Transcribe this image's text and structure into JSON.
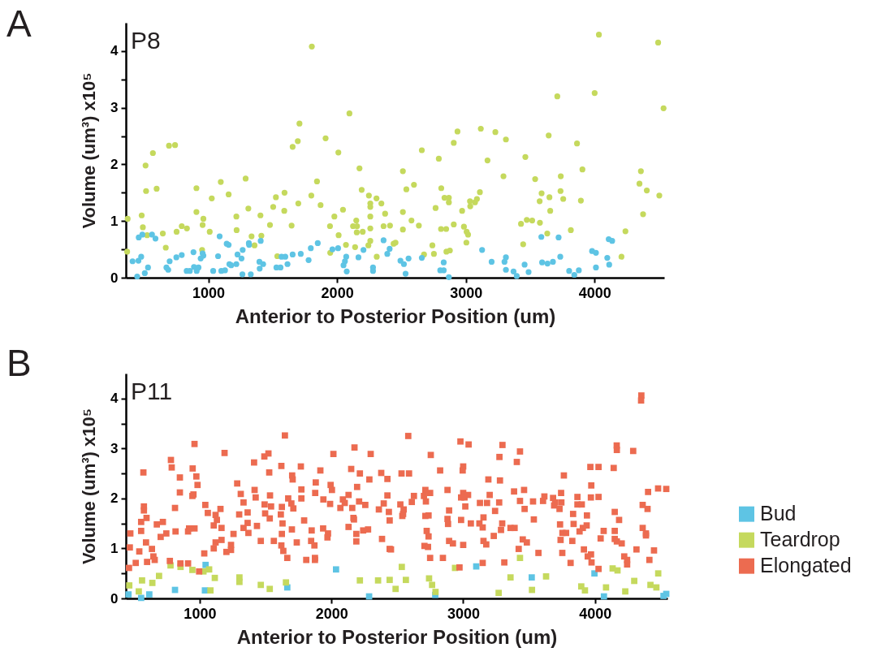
{
  "chart_data": [
    {
      "type": "scatter",
      "title": "P8",
      "xlabel": "Anterior to Posterior Position (um)",
      "ylabel": "Volume (um³) x10⁵",
      "annotations": [
        "A"
      ],
      "marker": "circle",
      "legend": false,
      "xlim": [
        360,
        4540
      ],
      "xticks": [
        1000,
        2000,
        3000,
        4000
      ],
      "ylim": [
        0,
        4.5
      ],
      "yticks": [
        0,
        {
          "value": 0.5,
          "label": null
        },
        1,
        {
          "value": 1.5,
          "label": null
        },
        2,
        {
          "value": 2.5,
          "label": null
        },
        3,
        {
          "value": 3.5,
          "label": null
        },
        4
      ],
      "series": [
        {
          "color": "#c5d95d",
          "x": [
            374,
            370,
            483,
            492,
            513,
            517,
            525,
            570,
            599,
            647,
            670,
            695,
            742,
            754,
            794,
            834,
            908,
            908,
            952,
            956,
            962,
            1011,
            1027,
            1097,
            1158,
            1218,
            1220,
            1290,
            1311,
            1336,
            1359,
            1405,
            1412,
            1479,
            1504,
            1525,
            1536,
            1592,
            1590,
            1647,
            1655,
            1695,
            1708,
            1699,
            1804,
            1800,
            1844,
            1872,
            1911,
            1945,
            1947,
            1979,
            2010,
            2012,
            2046,
            2069,
            2096,
            2124,
            2149,
            2153,
            2155,
            2140,
            2174,
            2191,
            2199,
            2247,
            2258,
            2258,
            2258,
            2258,
            2258,
            2243,
            2306,
            2308,
            2344,
            2373,
            2361,
            2411,
            2439,
            2454,
            2511,
            2511,
            2511,
            2538,
            2578,
            2597,
            2635,
            2658,
            2675,
            2740,
            2752,
            2765,
            2790,
            2809,
            2807,
            2847,
            2834,
            2868,
            2868,
            2849,
            2876,
            2906,
            2935,
            2906,
            2971,
            2985,
            3006,
            3017,
            3004,
            3032,
            3034,
            3071,
            3086,
            3109,
            3116,
            3168,
            3229,
            3292,
            3311,
            3428,
            3445,
            3462,
            3473,
            3515,
            3538,
            3575,
            3573,
            3588,
            3632,
            3643,
            3649,
            3655,
            3710,
            3737,
            3735,
            3756,
            3815,
            3863,
            3893,
            3905,
            4000,
            4033,
            4208,
            4239,
            4348,
            4359,
            4376,
            4405,
            4493,
            4502,
            4535
          ],
          "values": [
            1.04,
            0.46,
            1.1,
            0.89,
            1.98,
            1.53,
            0.75,
            2.2,
            1.57,
            0.78,
            0.53,
            2.33,
            2.34,
            0.81,
            0.91,
            0.87,
            1.58,
            1.16,
            0.49,
            0.93,
            1.04,
            0.81,
            1.4,
            1.69,
            1.47,
            1.08,
            0.84,
            1.75,
            1.22,
            0.73,
            0.57,
            1.1,
            0.74,
            0.93,
            1.25,
            1.42,
            0.38,
            1.5,
            1.18,
            0.92,
            2.31,
            2.41,
            2.72,
            1.31,
            4.08,
            1.45,
            1.7,
            1.28,
            2.46,
            0.91,
            0.44,
            1.08,
            2.21,
            0.75,
            1.2,
            0.58,
            2.9,
            0.91,
            1.01,
            0.8,
            0.91,
            0.54,
            1.93,
            1.55,
            0.81,
            1.45,
            1.31,
            1.25,
            1.08,
            0.87,
            0.65,
            0.57,
            1.4,
            0.37,
            1.31,
            1.13,
            0.91,
            0.92,
            0.6,
            0.62,
            1.88,
            1.16,
            0.85,
            1.56,
            1.01,
            1.64,
            0.92,
            2.25,
            0.41,
            0.57,
            0.42,
            1.23,
            2.1,
            1.58,
            0.86,
            0.86,
            1.41,
            1.41,
            1.33,
            0.46,
            0.48,
            2.38,
            2.58,
            0.94,
            1.18,
            0.9,
            0.81,
            0.76,
            0.62,
            1.35,
            1.26,
            1.33,
            1.39,
            1.51,
            2.63,
            2.07,
            2.57,
            1.79,
            2.44,
            0.95,
            0.59,
            2.13,
            1.02,
            1.01,
            1.74,
            0.97,
            1.35,
            1.49,
            0.78,
            2.51,
            1.42,
            1.18,
            3.2,
            1.79,
            1.53,
            1.39,
            0.84,
            2.37,
            1.36,
            1.91,
            3.26,
            4.29,
            0.37,
            0.82,
            1.66,
            1.88,
            1.12,
            1.54,
            4.15,
            1.45,
            2.99
          ]
        },
        {
          "color": "#5ec4e4",
          "x": [
            412,
            448,
            458,
            460,
            479,
            488,
            507,
            532,
            563,
            590,
            675,
            689,
            700,
            752,
            794,
            832,
            857,
            885,
            889,
            910,
            924,
            941,
            956,
            962,
            1038,
            1076,
            1088,
            1101,
            1130,
            1143,
            1158,
            1164,
            1178,
            1218,
            1227,
            1258,
            1267,
            1265,
            1315,
            1317,
            1330,
            1397,
            1399,
            1407,
            1426,
            1529,
            1561,
            1569,
            1598,
            1615,
            1655,
            1718,
            1779,
            1796,
            1850,
            1964,
            2008,
            2050,
            2061,
            2071,
            2075,
            2166,
            2205,
            2279,
            2279,
            2361,
            2390,
            2408,
            2492,
            2519,
            2532,
            2555,
            2658,
            2801,
            2828,
            2828,
            2868,
            3126,
            3200,
            3300,
            3311,
            3311,
            3370,
            3395,
            3456,
            3487,
            3586,
            3592,
            3634,
            3676,
            3720,
            3733,
            3802,
            3842,
            3877,
            3980,
            4010,
            4010,
            4098,
            4113,
            4109,
            4136
          ],
          "values": [
            0.29,
            0.02,
            0.3,
            0.71,
            0.37,
            0.76,
            0.08,
            0.18,
            0.76,
            0.69,
            0.18,
            0.14,
            0.29,
            0.36,
            0.4,
            0.12,
            0.12,
            0.45,
            0.19,
            0.12,
            0.18,
            0.34,
            0.43,
            0.39,
            0.12,
            0.38,
            0.73,
            0.12,
            0.13,
            0.6,
            0.58,
            0.24,
            0.22,
            0.24,
            0.41,
            0.34,
            0.49,
            0.06,
            0.61,
            0.58,
            0.06,
            0.28,
            0.16,
            0.65,
            0.24,
            0.18,
            0.18,
            0.37,
            0.37,
            0.24,
            0.41,
            0.42,
            0.31,
            0.52,
            0.61,
            0.5,
            0.52,
            0.22,
            0.29,
            0.37,
            0.11,
            0.36,
            0.49,
            0.18,
            0.12,
            0.66,
            0.42,
            0.51,
            0.3,
            0.24,
            0.07,
            0.34,
            0.35,
            0.13,
            0.13,
            0.27,
            0.01,
            0.49,
            0.28,
            0.28,
            0.36,
            0.14,
            0.11,
            0.03,
            0.23,
            0.1,
            0.72,
            0.27,
            0.25,
            0.28,
            0.71,
            0.37,
            0.12,
            0.05,
            0.13,
            0.47,
            0.44,
            0.18,
            0.35,
            0.23,
            0.68,
            0.65
          ]
        }
      ]
    },
    {
      "type": "scatter",
      "title": "P11",
      "xlabel": "Anterior to Posterior Position (um)",
      "ylabel": "Volume (um³) x10⁵",
      "annotations": [
        "B"
      ],
      "marker": "square",
      "legend": "right",
      "xlim": [
        440,
        4550
      ],
      "xticks": [
        1000,
        2000,
        3000,
        4000
      ],
      "ylim": [
        0,
        4.5
      ],
      "yticks": [
        0,
        {
          "value": 0.5,
          "label": null
        },
        1,
        {
          "value": 1.5,
          "label": null
        },
        2,
        {
          "value": 2.5,
          "label": null
        },
        3,
        {
          "value": 3.5,
          "label": null
        },
        4
      ],
      "series": [
        {
          "name": "Bud",
          "color": "#5ec4e4",
          "x": [
            460,
            556,
            618,
            813,
            1045,
            1040,
            1665,
            2035,
            2286,
            2788,
            3099,
            3520,
            3996,
            4068,
            4520,
            4541
          ],
          "values": [
            0.08,
            0.01,
            0.08,
            0.17,
            0.67,
            0.16,
            0.22,
            0.58,
            0.04,
            0.07,
            0.64,
            0.42,
            0.5,
            0.04,
            0.05,
            0.09
          ]
        },
        {
          "name": "Teardrop",
          "color": "#c5d95d",
          "x": [
            466,
            538,
            563,
            641,
            692,
            779,
            855,
            945,
            1029,
            1072,
            1082,
            1115,
            1302,
            1302,
            1464,
            1532,
            1655,
            2216,
            2354,
            2442,
            2487,
            2534,
            2565,
            2741,
            2764,
            2790,
            2938,
            3269,
            3359,
            3431,
            3522,
            3629,
            3896,
            3924,
            4084,
            4134,
            4171,
            4230,
            4298,
            4421,
            4466,
            4480
          ],
          "values": [
            0.26,
            0.14,
            0.36,
            0.31,
            0.45,
            0.66,
            0.63,
            0.57,
            0.54,
            0.58,
            0.16,
            0.41,
            0.42,
            0.33,
            0.27,
            0.19,
            0.32,
            0.36,
            0.36,
            0.37,
            0.19,
            0.63,
            0.37,
            0.4,
            0.27,
            0.13,
            0.61,
            0.11,
            0.42,
            0.81,
            0.17,
            0.44,
            0.24,
            0.16,
            0.22,
            0.6,
            0.56,
            0.14,
            0.35,
            0.27,
            0.22,
            0.5
          ]
        },
        {
          "name": "Elongated",
          "color": "#ec6b50",
          "x": [
            464,
            470,
            474,
            515,
            542,
            556,
            556,
            573,
            577,
            577,
            597,
            593,
            601,
            638,
            649,
            659,
            675,
            721,
            704,
            747,
            774,
            782,
            788,
            813,
            817,
            850,
            850,
            854,
            912,
            912,
            920,
            947,
            953,
            945,
            961,
            961,
            975,
            984,
            996,
            1035,
            1043,
            1062,
            1107,
            1107,
            1121,
            1121,
            1131,
            1158,
            1166,
            1166,
            1189,
            1203,
            1238,
            1238,
            1257,
            1285,
            1300,
            1312,
            1333,
            1333,
            1364,
            1364,
            1370,
            1413,
            1417,
            1425,
            1435,
            1464,
            1491,
            1522,
            1493,
            1497,
            1528,
            1534,
            1542,
            1532,
            1563,
            1620,
            1616,
            1624,
            1629,
            1624,
            1620,
            1635,
            1647,
            1665,
            1672,
            1696,
            1702,
            1706,
            1711,
            1700,
            1737,
            1768,
            1772,
            1772,
            1793,
            1809,
            1850,
            1846,
            1871,
            1875,
            1875,
            1881,
            1877,
            1916,
            1939,
            1937,
            1974,
            1970,
            1990,
            1994,
            2004,
            2015,
            2068,
            2087,
            2101,
            2130,
            2130,
            2150,
            2158,
            2167,
            2171,
            2175,
            2189,
            2189,
            2195,
            2210,
            2216,
            2241,
            2257,
            2278,
            2288,
            2298,
            2360,
            2378,
            2384,
            2397,
            2425,
            2425,
            2436,
            2442,
            2442,
            2452,
            2532,
            2589,
            2523,
            2544,
            2548,
            2538,
            2610,
            2626,
            2583,
            2713,
            2702,
            2749,
            2717,
            2713,
            2737,
            2723,
            2737,
            2706,
            2733,
            2749,
            2754,
            2825,
            2846,
            2881,
            2893,
            2881,
            2885,
            2893,
            2922,
            2972,
            2979,
            3041,
            3000,
            2996,
            3000,
            2984,
            3010,
            3037,
            3016,
            2984,
            3000,
            3058,
            3123,
            3154,
            3148,
            3154,
            3175,
            3127,
            3181,
            3191,
            3201,
            3148,
            3232,
            3242,
            3275,
            3279,
            3273,
            3296,
            3287,
            3298,
            3312,
            3359,
            3390,
            3386,
            3407,
            3431,
            3431,
            3462,
            3466,
            3452,
            3483,
            3421,
            3530,
            3536,
            3571,
            3606,
            3616,
            3682,
            3698,
            3690,
            3731,
            3743,
            3745,
            3764,
            3735,
            3753,
            3781,
            3739,
            3752,
            3815,
            3828,
            3834,
            3838,
            3867,
            3867,
            3900,
            3883,
            3908,
            3937,
            3939,
            3916,
            3945,
            3970,
            3974,
            3965,
            3972,
            3969,
            4027,
            4027,
            4027,
            4043,
            4066,
            4142,
            4150,
            4183,
            4150,
            4150,
            4166,
            4203,
            4165,
            4166,
            4290,
            4222,
            4244,
            4244,
            4315,
            4352,
            4350,
            4362,
            4362,
            4387,
            4387,
            4403,
            4399,
            4413,
            4448,
            4479,
            4541
          ],
          "values": [
            0.61,
            1.02,
            1.3,
            0.71,
            0.94,
            1.35,
            1.53,
            2.52,
            1.84,
            1.76,
            1.61,
            1.12,
            0.73,
            0.99,
            0.84,
            0.77,
            1.48,
            1.53,
            1.23,
            1.3,
            0.75,
            2.77,
            2.62,
            1.81,
            1.34,
            2.42,
            2.12,
            0.7,
            0.7,
            1.34,
            1.4,
            2.6,
            2.08,
            2.05,
            3.09,
            1.4,
            2.44,
            2.27,
            0.54,
            0.9,
            1.87,
            1.71,
            1.0,
            1.46,
            1.67,
            1.12,
            1.57,
            1.79,
            1.41,
            1.17,
            2.91,
            0.93,
            1.07,
            0.97,
            1.29,
            2.3,
            1.68,
            2.09,
            1.92,
            1.41,
            1.72,
            1.51,
            1.31,
            2.72,
            2.17,
            2.02,
            1.45,
            1.15,
            2.84,
            2.9,
            1.88,
            1.7,
            2.52,
            2.06,
            1.84,
            1.6,
            1.15,
            2.65,
            1.68,
            1.83,
            1.5,
            1.29,
            1.06,
            0.95,
            3.26,
            0.81,
            2.0,
            1.9,
            2.46,
            2.38,
            1.8,
            1.38,
            1.12,
            2.64,
            2.18,
            2.0,
            1.56,
            0.77,
            1.36,
            1.15,
            1.06,
            0.81,
            0.77,
            2.32,
            2.11,
            2.56,
            1.98,
            1.4,
            1.3,
            1.22,
            1.89,
            2.27,
            2.17,
            2.89,
            1.81,
            1.98,
            1.91,
            1.43,
            2.07,
            2.59,
            1.81,
            1.61,
            1.58,
            3.02,
            1.29,
            1.14,
            2.23,
            1.94,
            2.5,
            1.36,
            1.87,
            1.38,
            2.38,
            2.89,
            1.78,
            2.51,
            1.19,
            1.9,
            2.39,
            2.06,
            1.73,
            1.56,
            0.99,
            0.98,
            2.5,
            2.5,
            1.88,
            1.69,
            1.78,
            1.65,
            1.93,
            2.05,
            3.25,
            2.17,
            2.05,
            2.11,
            1.94,
            1.65,
            1.66,
            1.35,
            1.24,
            1.05,
            1.03,
            0.81,
            2.87,
            2.56,
            0.81,
            2.17,
            1.76,
            1.59,
            1.49,
            1.15,
            1.1,
            0.62,
            3.14,
            3.08,
            2.64,
            2.56,
            2.11,
            2.02,
            2.02,
            2.07,
            1.84,
            1.57,
            1.07,
            1.5,
            1.5,
            1.62,
            1.42,
            1.15,
            1.08,
            1.91,
            1.91,
            2.38,
            2.07,
            0.71,
            1.25,
            1.75,
            2.83,
            2.36,
            1.92,
            1.5,
            1.37,
            3.07,
            0.72,
            1.41,
            1.41,
            2.14,
            2.73,
            2.94,
            1.95,
            2.17,
            1.79,
            1.18,
            1.12,
            0.99,
            1.94,
            1.58,
            0.91,
            1.95,
            2.04,
            2.01,
            1.92,
            1.86,
            1.79,
            2.11,
            1.92,
            2.46,
            1.48,
            1.31,
            1.31,
            1.17,
            0.91,
            0.71,
            1.15,
            1.69,
            1.49,
            2.03,
            1.88,
            1.88,
            1.34,
            1.41,
            1.46,
            1.66,
            0.98,
            0.84,
            0.88,
            0.72,
            2.63,
            2.26,
            2.02,
            2.63,
            2.03,
            0.59,
            1.2,
            1.35,
            2.61,
            1.73,
            1.57,
            1.35,
            1.19,
            1.14,
            1.1,
            3.06,
            2.97,
            2.95,
            0.84,
            0.77,
            0.68,
            0.98,
            4.06,
            3.96,
            1.87,
            1.41,
            1.3,
            1.26,
            2.13,
            1.79,
            0.77,
            0.96,
            2.2,
            2.19
          ]
        }
      ]
    }
  ]
}
